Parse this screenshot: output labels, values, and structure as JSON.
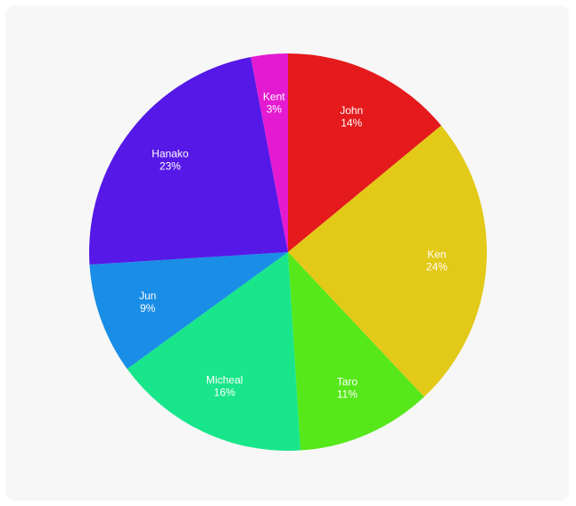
{
  "chart_data": {
    "type": "pie",
    "categories": [
      "John",
      "Ken",
      "Taro",
      "Micheal",
      "Jun",
      "Hanako",
      "Kent"
    ],
    "values": [
      14,
      24,
      11,
      16,
      9,
      23,
      3
    ],
    "value_labels": [
      "14%",
      "24%",
      "11%",
      "16%",
      "9%",
      "23%",
      "3%"
    ],
    "colors": [
      "#e41a1c",
      "#e3c918",
      "#56e81a",
      "#19e68a",
      "#1a8de6",
      "#5518e6",
      "#e41ad0"
    ]
  }
}
